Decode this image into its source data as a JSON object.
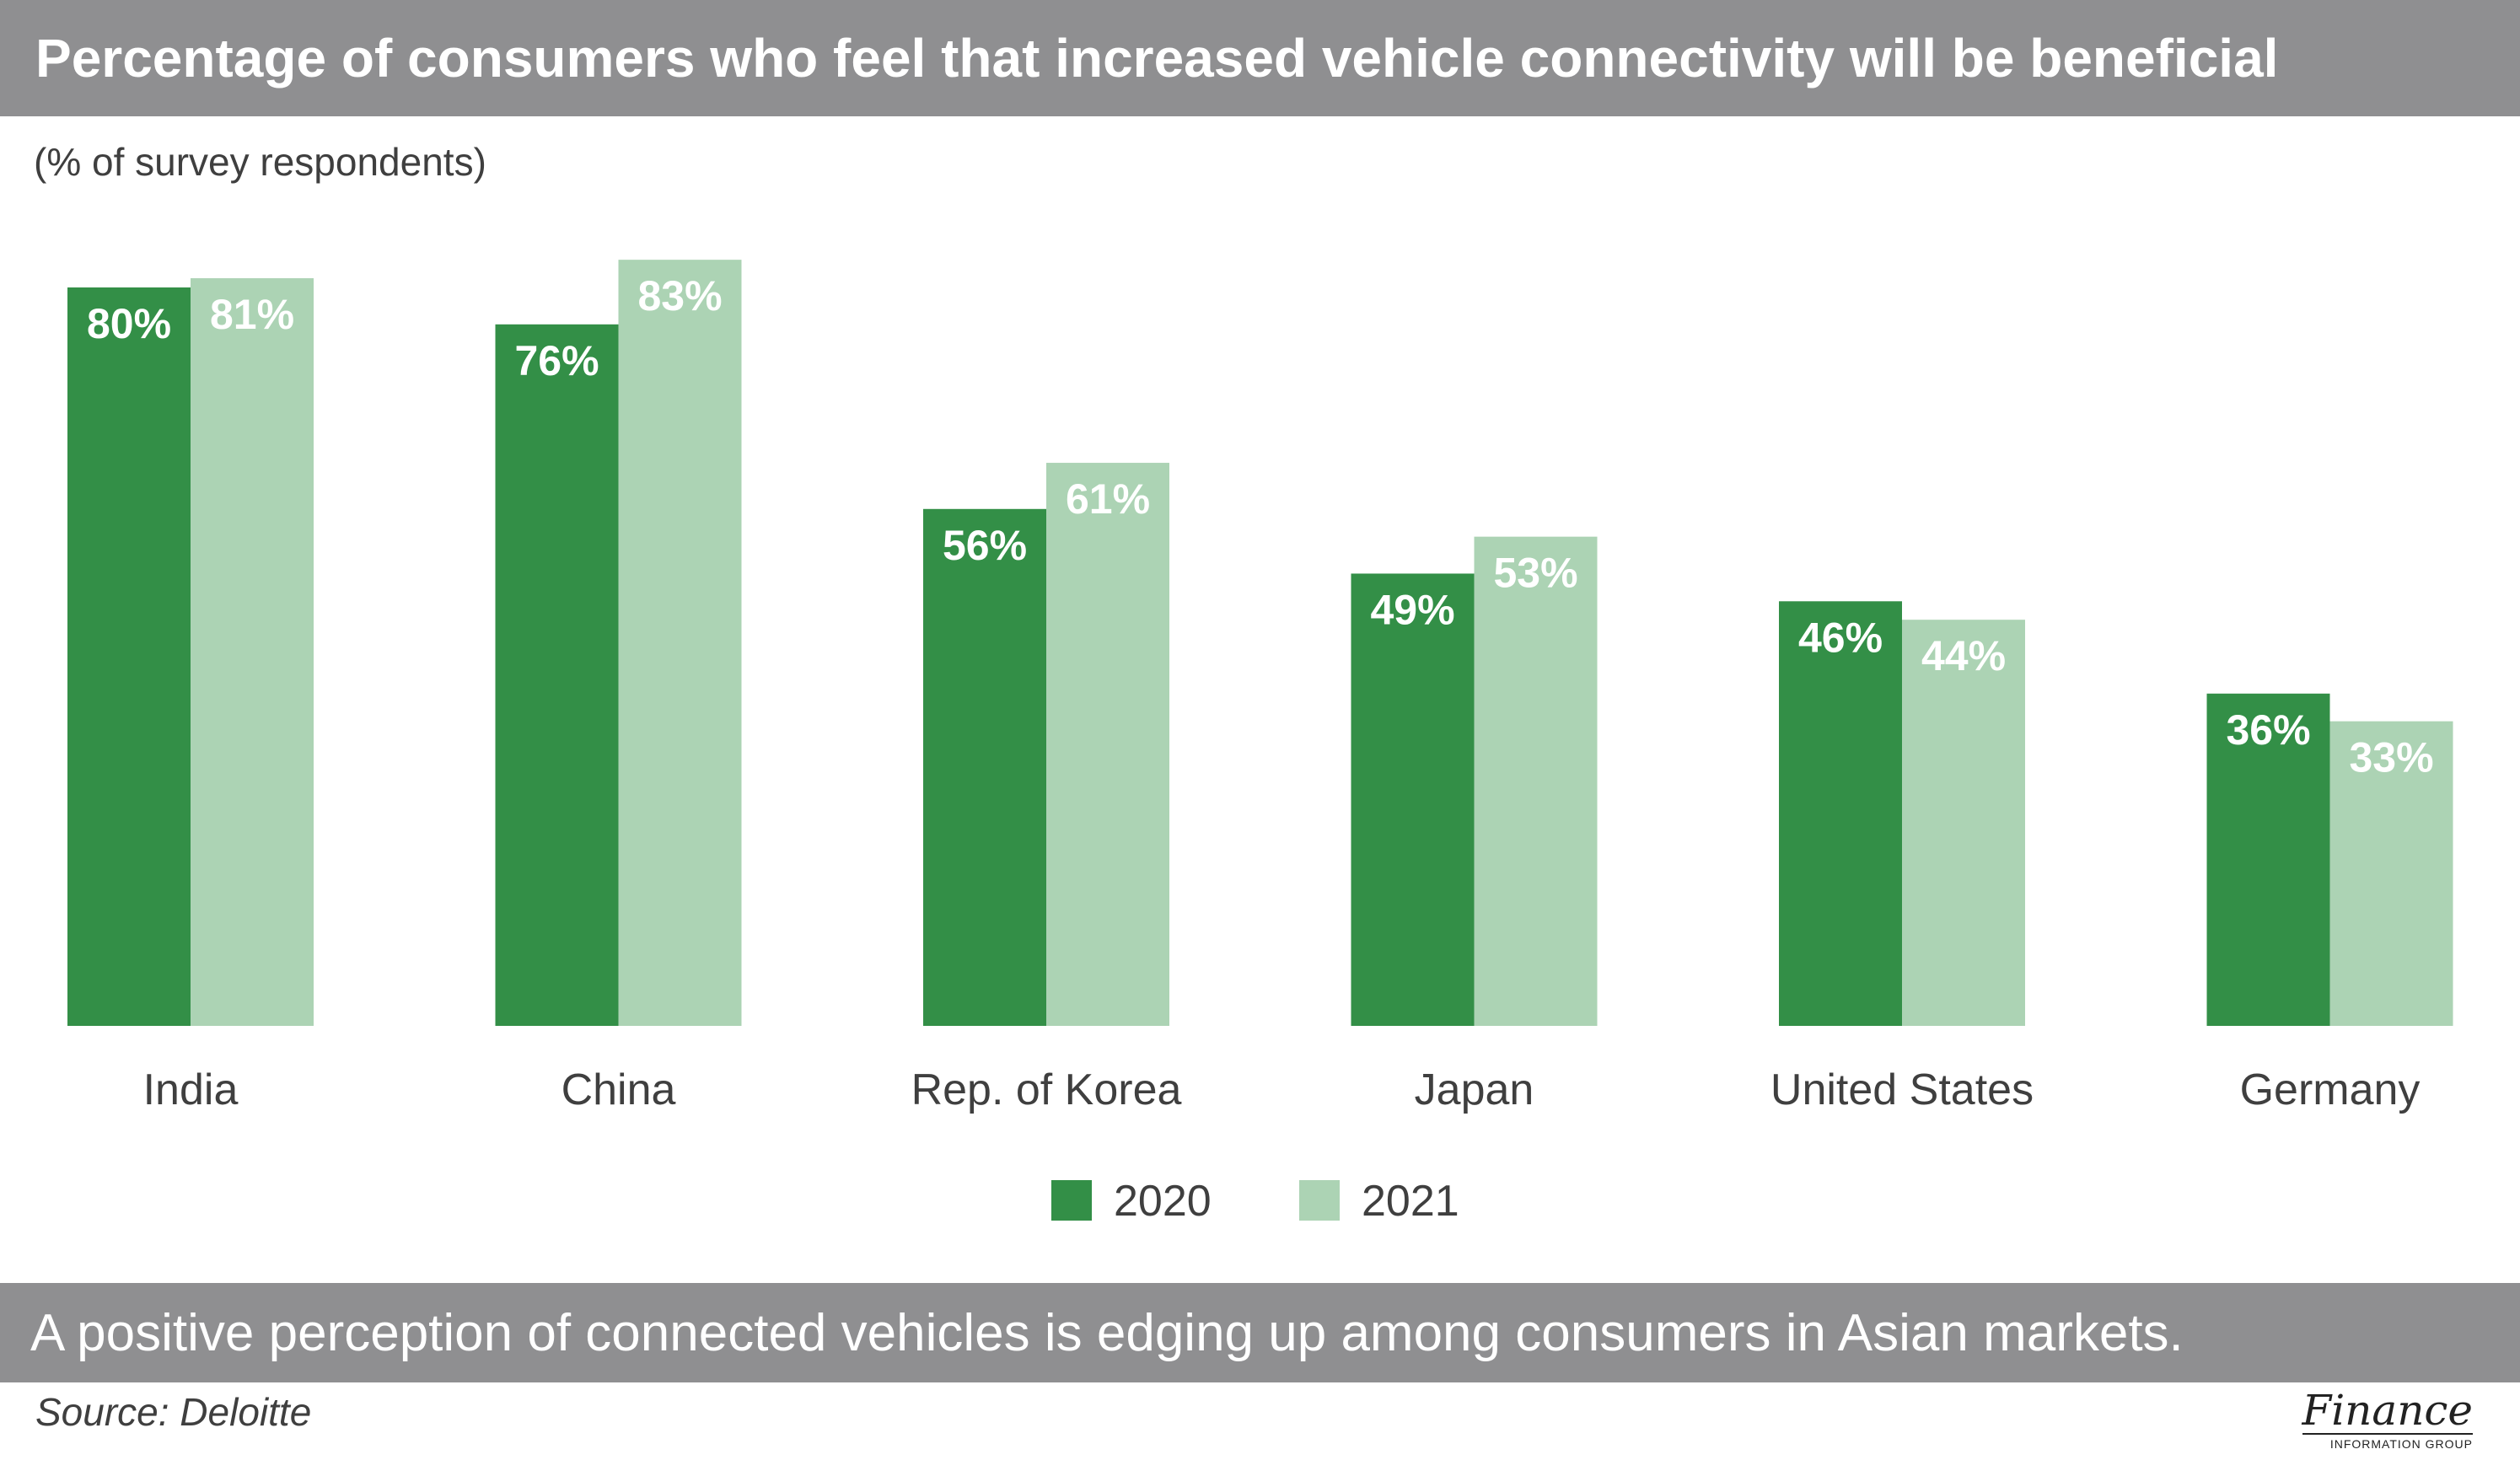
{
  "header": {
    "title": "Percentage of consumers who feel that increased vehicle connectivity will be beneficial",
    "subtitle": "(% of survey respondents)"
  },
  "footer": {
    "caption": "A positive perception of connected vehicles is edging up among consumers in Asian markets.",
    "source": "Source: Deloitte",
    "logo_word": "Finance",
    "logo_sub": "INFORMATION GROUP"
  },
  "colors": {
    "series_2020": "#338f47",
    "series_2021": "#acd3b4",
    "header_bg": "#8f8f91",
    "bar_label": "#ffffff",
    "axis_text": "#3f3f3f"
  },
  "chart_data": {
    "type": "bar",
    "title": "Percentage of consumers who feel that increased vehicle connectivity will be beneficial",
    "ylabel": "(% of survey respondents)",
    "xlabel": "",
    "categories": [
      "India",
      "China",
      "Rep. of Korea",
      "Japan",
      "United States",
      "Germany"
    ],
    "series": [
      {
        "name": "2020",
        "values": [
          80,
          76,
          56,
          49,
          46,
          36
        ],
        "labels": [
          "80%",
          "76%",
          "56%",
          "49%",
          "46%",
          "36%"
        ]
      },
      {
        "name": "2021",
        "values": [
          81,
          83,
          61,
          53,
          44,
          33
        ],
        "labels": [
          "81%",
          "83%",
          "61%",
          "53%",
          "44%",
          "33%"
        ]
      }
    ],
    "ylim": [
      0,
      100
    ],
    "grid": false,
    "legend_position": "bottom-center"
  }
}
